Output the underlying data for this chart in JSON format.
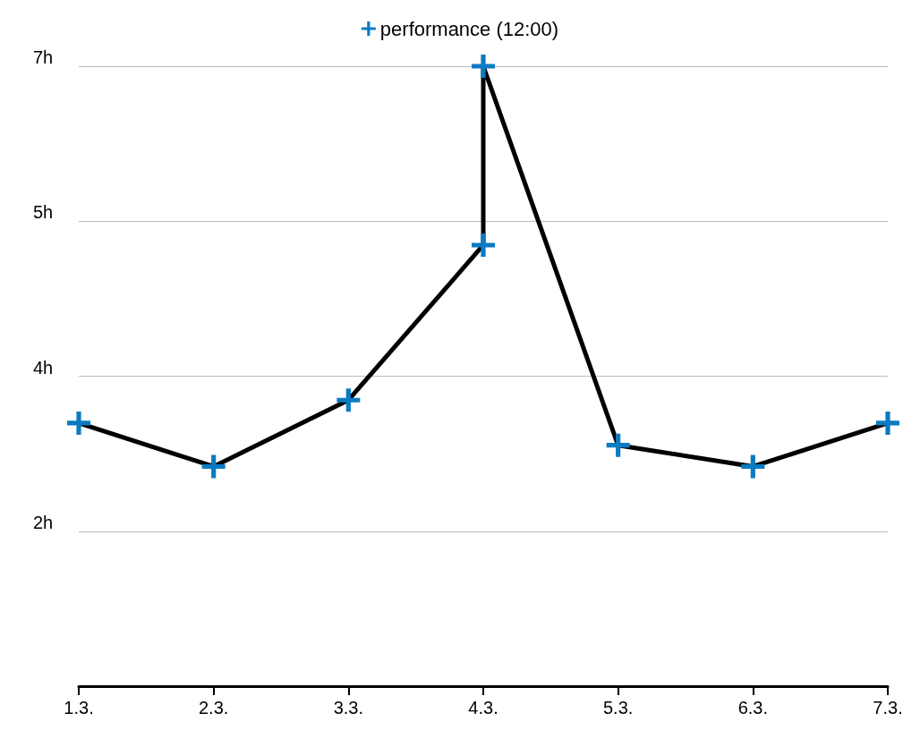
{
  "chart_data": {
    "type": "line",
    "marker": "cross",
    "grid": "y",
    "legend": "top",
    "categories": [
      "1.3.",
      "2.3.",
      "3.3.",
      "4.3.",
      "5.3.",
      "6.3.",
      "7.3."
    ],
    "series": [
      {
        "name": "performance (12:00)",
        "color": "#0a7bc2",
        "x": [
          "1.3.",
          "2.3.",
          "3.3.",
          "4.3.",
          "4.3.",
          "5.3.",
          "6.3.",
          "7.3."
        ],
        "values": [
          2.97,
          2.48,
          3.23,
          4.98,
          7.0,
          2.72,
          2.48,
          2.97
        ]
      }
    ],
    "ylim": [
      0,
      7
    ],
    "yticks": [
      {
        "value": 1.75,
        "label": "2h"
      },
      {
        "value": 3.5,
        "label": "4h"
      },
      {
        "value": 5.25,
        "label": "5h"
      },
      {
        "value": 7,
        "label": "7h"
      }
    ]
  }
}
